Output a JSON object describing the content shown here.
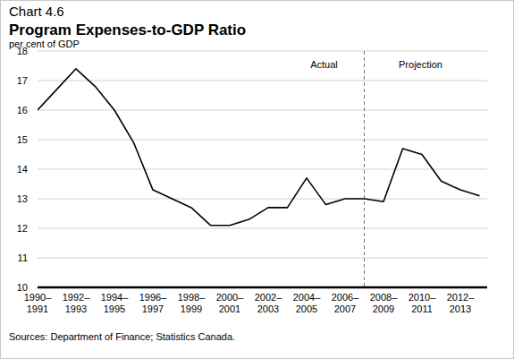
{
  "chart_data": {
    "type": "line",
    "title": "Chart 4.6",
    "subtitle": "Program Expenses-to-GDP Ratio",
    "y_label": "per cent of GDP",
    "source": "Sources: Department of Finance; Statistics Canada.",
    "categories": [
      "1990–1991",
      null,
      "1992–1993",
      null,
      "1994–1995",
      null,
      "1996–1997",
      null,
      "1998–1999",
      null,
      "2000–2001",
      null,
      "2002–2003",
      null,
      "2004–2005",
      null,
      "2006–2007",
      null,
      "2008–2009",
      null,
      "2010–2011",
      null,
      "2012–2013",
      null
    ],
    "values": [
      16.0,
      16.7,
      17.4,
      16.8,
      16.0,
      14.9,
      13.3,
      13.0,
      12.7,
      12.1,
      12.1,
      12.3,
      12.7,
      12.7,
      13.7,
      12.8,
      13.0,
      13.0,
      12.9,
      14.7,
      14.5,
      13.6,
      13.3,
      13.1
    ],
    "color": "#000000",
    "ylim": [
      10,
      18
    ],
    "yticks": [
      10,
      11,
      12,
      13,
      14,
      15,
      16,
      17,
      18
    ],
    "grid": true,
    "annotations": [
      {
        "text": "Actual",
        "x": 17
      },
      {
        "text": "Projection",
        "x": 17
      }
    ]
  }
}
